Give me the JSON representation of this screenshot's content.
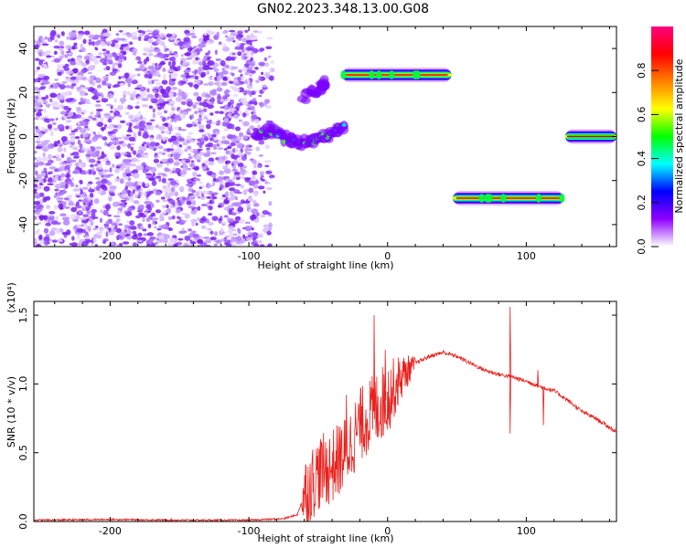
{
  "figure_title": "GN02.2023.348.13.00.G08",
  "chart_data": [
    {
      "type": "heatmap",
      "name": "spectrogram",
      "xlabel": "Height of straight line (km)",
      "ylabel": "Frequency (Hz)",
      "xlim": [
        -255,
        165
      ],
      "ylim": [
        -50,
        50
      ],
      "xticks": [
        -200,
        -100,
        0,
        100
      ],
      "yticks": [
        -40,
        -20,
        0,
        20,
        40
      ],
      "grid": false,
      "colorbar": {
        "label": "Normalized spectral amplitude",
        "range": [
          0.0,
          1.0
        ],
        "ticks": [
          "0.0",
          "0.2",
          "0.4",
          "0.6",
          "0.8"
        ],
        "colors": [
          "#ffffff",
          "#8f00ff",
          "#0000ff",
          "#00ffff",
          "#00ff00",
          "#ffff00",
          "#ff8000",
          "#ff0000",
          "#ff0080"
        ]
      },
      "features": [
        {
          "kind": "noise",
          "x_range": [
            -255,
            -83
          ],
          "y_range": [
            -50,
            48
          ],
          "amplitude": 0.1
        },
        {
          "kind": "track",
          "points": [
            [
              -95,
              0
            ],
            [
              -85,
              3
            ],
            [
              -75,
              0
            ],
            [
              -65,
              -3
            ],
            [
              -55,
              -2
            ],
            [
              -45,
              0
            ],
            [
              -38,
              2
            ],
            [
              -32,
              4
            ]
          ],
          "amplitude": 0.2
        },
        {
          "kind": "track",
          "points": [
            [
              -60,
              18
            ],
            [
              -48,
              22
            ],
            [
              -45,
              25
            ]
          ],
          "amplitude": 0.15
        },
        {
          "kind": "band",
          "x_range": [
            -33,
            46
          ],
          "freq": 28,
          "amplitude": 0.9
        },
        {
          "kind": "band",
          "x_range": [
            47,
            127
          ],
          "freq": -28,
          "amplitude": 0.9
        },
        {
          "kind": "band",
          "x_range": [
            128,
            165
          ],
          "freq": 0,
          "amplitude": 0.7
        }
      ]
    },
    {
      "type": "line",
      "name": "snr",
      "xlabel": "Height of straight line (km)",
      "ylabel": "SNR (10 * v/v)",
      "y_multiplier": "(x10⁴)",
      "xlim": [
        -255,
        165
      ],
      "ylim": [
        0.0,
        1.6
      ],
      "xticks": [
        -200,
        -100,
        0,
        100
      ],
      "yticks": [
        "0.0",
        "0.5",
        "1.0",
        "1.5"
      ],
      "grid": false,
      "color": "#e8211e",
      "x": [
        -255,
        -200,
        -150,
        -100,
        -75,
        -65,
        -60,
        -50,
        -40,
        -30,
        -20,
        -10,
        0,
        10,
        20,
        30,
        40,
        50,
        60,
        70,
        80,
        90,
        100,
        110,
        120,
        130,
        140,
        150,
        165
      ],
      "y": [
        0.01,
        0.015,
        0.01,
        0.01,
        0.02,
        0.05,
        0.2,
        0.35,
        0.4,
        0.5,
        0.7,
        0.8,
        0.9,
        1.05,
        1.15,
        1.2,
        1.23,
        1.2,
        1.15,
        1.1,
        1.07,
        1.05,
        1.02,
        0.98,
        0.95,
        0.88,
        0.8,
        0.75,
        0.65
      ],
      "spikes": [
        [
          -10,
          1.5
        ],
        [
          88,
          1.56
        ],
        [
          88,
          0.64
        ],
        [
          108,
          1.1
        ],
        [
          112,
          0.7
        ],
        [
          -2,
          1.25
        ],
        [
          -30,
          0.92
        ],
        [
          -20,
          0.92
        ]
      ]
    }
  ]
}
